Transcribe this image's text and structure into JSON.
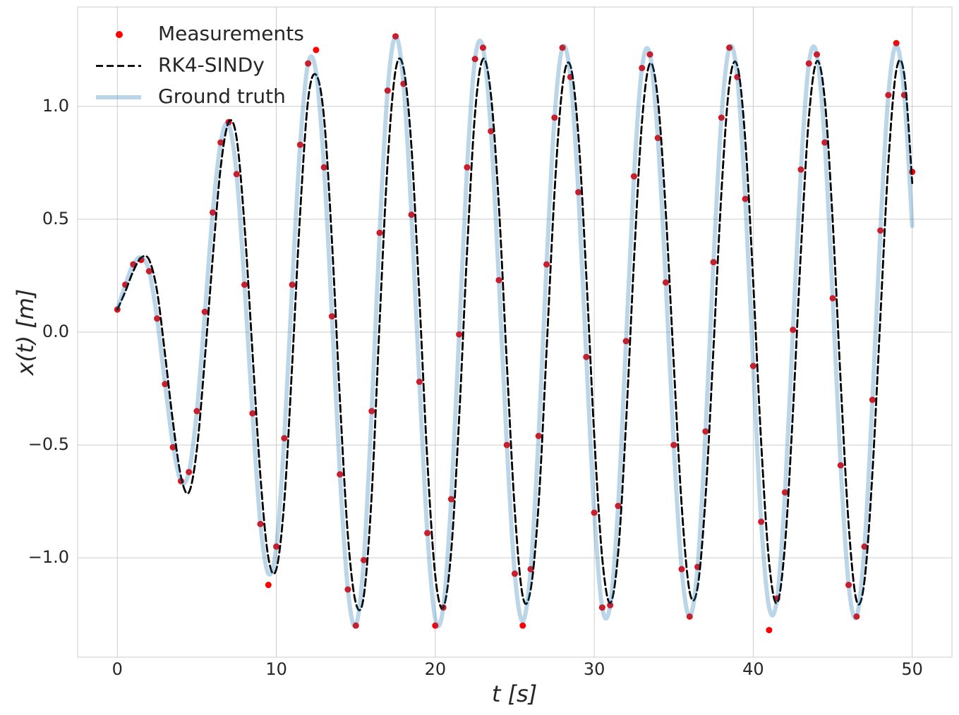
{
  "chart_data": {
    "type": "line",
    "x_label": "t [s]",
    "y_label": "x(t) [m]",
    "x": [
      0,
      0.5,
      1,
      1.5,
      2,
      2.5,
      3,
      3.5,
      4,
      4.5,
      5,
      5.5,
      6,
      6.5,
      7,
      7.5,
      8,
      8.5,
      9,
      9.5,
      10,
      10.5,
      11,
      11.5,
      12,
      12.5,
      13,
      13.5,
      14,
      14.5,
      15,
      15.5,
      16,
      16.5,
      17,
      17.5,
      18,
      18.5,
      19,
      19.5,
      20,
      20.5,
      21,
      21.5,
      22,
      22.5,
      23,
      23.5,
      24,
      24.5,
      25,
      25.5,
      26,
      26.5,
      27,
      27.5,
      28,
      28.5,
      29,
      29.5,
      30,
      30.5,
      31,
      31.5,
      32,
      32.5,
      33,
      33.5,
      34,
      34.5,
      35,
      35.5,
      36,
      36.5,
      37,
      37.5,
      38,
      38.5,
      39,
      39.5,
      40,
      40.5,
      41,
      41.5,
      42,
      42.5,
      43,
      43.5,
      44,
      44.5,
      45,
      45.5,
      46,
      46.5,
      47,
      47.5,
      48,
      48.5,
      49,
      49.5,
      50
    ],
    "series": [
      {
        "name": "Measurements",
        "style": "markers",
        "color": "#ff0000",
        "opacity": 1,
        "values": [
          0.1,
          0.21,
          0.3,
          0.32,
          0.27,
          0.06,
          -0.23,
          -0.51,
          -0.66,
          -0.62,
          -0.35,
          0.09,
          0.53,
          0.84,
          0.93,
          0.7,
          0.21,
          -0.36,
          -0.85,
          -1.12,
          -0.95,
          -0.47,
          0.21,
          0.83,
          1.19,
          1.25,
          0.73,
          0.07,
          -0.63,
          -1.14,
          -1.3,
          -1.01,
          -0.35,
          0.44,
          1.07,
          1.31,
          1.1,
          0.52,
          -0.22,
          -0.89,
          -1.3,
          -1.22,
          -0.74,
          -0.01,
          0.73,
          1.21,
          1.26,
          0.89,
          0.23,
          -0.5,
          -1.07,
          -1.3,
          -1.05,
          -0.46,
          0.3,
          0.95,
          1.26,
          1.13,
          0.62,
          -0.11,
          -0.8,
          -1.22,
          -1.21,
          -0.77,
          -0.04,
          0.69,
          1.17,
          1.23,
          0.86,
          0.22,
          -0.5,
          -1.05,
          -1.26,
          -1.04,
          -0.44,
          0.31,
          0.95,
          1.26,
          1.13,
          0.59,
          -0.15,
          -0.84,
          -1.32,
          -1.18,
          -0.71,
          0.01,
          0.72,
          1.19,
          1.23,
          0.84,
          0.15,
          -0.59,
          -1.12,
          -1.26,
          -0.95,
          -0.3,
          0.45,
          1.05,
          1.28,
          1.05,
          0.71
        ]
      },
      {
        "name": "RK4-SINDy",
        "style": "dashed",
        "color": "#000000",
        "opacity": 1,
        "values": [
          0.1,
          0.18,
          0.27,
          0.33,
          0.32,
          0.18,
          -0.1,
          -0.4,
          -0.64,
          -0.71,
          -0.52,
          -0.12,
          0.33,
          0.73,
          0.93,
          0.86,
          0.47,
          -0.09,
          -0.64,
          -1.0,
          -1.05,
          -0.75,
          -0.14,
          0.53,
          1.03,
          1.14,
          0.95,
          0.4,
          -0.3,
          -0.9,
          -1.2,
          -1.17,
          -0.72,
          0.05,
          0.75,
          1.16,
          1.17,
          0.82,
          0.15,
          -0.57,
          -1.08,
          -1.22,
          -0.97,
          -0.38,
          0.36,
          0.97,
          1.21,
          1.05,
          0.56,
          -0.14,
          -0.79,
          -1.17,
          -1.14,
          -0.76,
          -0.08,
          0.62,
          1.09,
          1.18,
          0.87,
          0.25,
          -0.46,
          -1.0,
          -1.2,
          -0.98,
          -0.4,
          0.32,
          0.93,
          1.19,
          1.03,
          0.53,
          -0.14,
          -0.77,
          -1.15,
          -1.13,
          -0.73,
          -0.07,
          0.62,
          1.1,
          1.18,
          0.85,
          0.22,
          -0.49,
          -1.02,
          -1.2,
          -0.94,
          -0.35,
          0.36,
          0.95,
          1.2,
          1.03,
          0.49,
          -0.22,
          -0.85,
          -1.19,
          -1.1,
          -0.62,
          0.07,
          0.75,
          1.16,
          1.14,
          0.66
        ]
      },
      {
        "name": "Ground truth",
        "style": "solid",
        "color": "#1f77b4",
        "opacity": 0.3,
        "values": [
          0.1,
          0.21,
          0.3,
          0.33,
          0.27,
          0.06,
          -0.23,
          -0.5,
          -0.66,
          -0.62,
          -0.35,
          0.08,
          0.53,
          0.84,
          0.92,
          0.7,
          0.21,
          -0.36,
          -0.85,
          -1.07,
          -0.95,
          -0.47,
          0.21,
          0.83,
          1.19,
          1.15,
          0.73,
          0.07,
          -0.63,
          -1.14,
          -1.3,
          -1.01,
          -0.35,
          0.44,
          1.07,
          1.31,
          1.1,
          0.52,
          -0.22,
          -0.89,
          -1.27,
          -1.22,
          -0.74,
          -0.01,
          0.73,
          1.21,
          1.26,
          0.89,
          0.23,
          -0.5,
          -1.07,
          -1.28,
          -1.05,
          -0.46,
          0.3,
          0.95,
          1.26,
          1.13,
          0.62,
          -0.11,
          -0.8,
          -1.22,
          -1.21,
          -0.77,
          -0.04,
          0.69,
          1.17,
          1.23,
          0.86,
          0.22,
          -0.5,
          -1.05,
          -1.26,
          -1.04,
          -0.44,
          0.31,
          0.95,
          1.26,
          1.13,
          0.59,
          -0.15,
          -0.84,
          -1.22,
          -1.18,
          -0.71,
          0.01,
          0.72,
          1.19,
          1.23,
          0.84,
          0.15,
          -0.59,
          -1.12,
          -1.26,
          -0.95,
          -0.3,
          0.45,
          1.05,
          1.27,
          1.05,
          0.47
        ]
      }
    ],
    "xlim": [
      -2.5,
      52.5
    ],
    "ylim": [
      -1.44,
      1.44
    ],
    "xticks": [
      0,
      10,
      20,
      30,
      40,
      50
    ],
    "yticks": [
      {
        "value": -1,
        "label": "−1.0"
      },
      {
        "value": -0.5,
        "label": "−0.5"
      },
      {
        "value": 0,
        "label": "0.0"
      },
      0.5,
      {
        "value": 1,
        "label": "1.0"
      }
    ],
    "grid": true,
    "legend": "upper left"
  }
}
